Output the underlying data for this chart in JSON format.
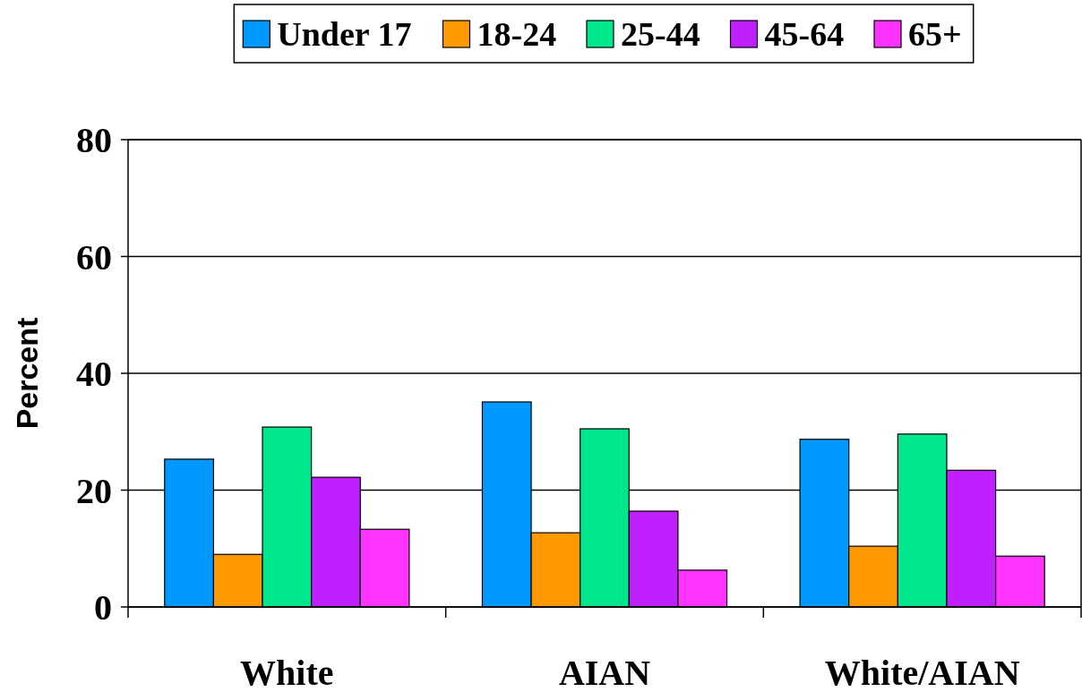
{
  "chart_data": {
    "type": "bar",
    "ylabel": "Percent",
    "categories": [
      "White",
      "AIAN",
      "White/AIAN"
    ],
    "series": [
      {
        "name": "Under 17",
        "color": "#0099ff",
        "values": [
          25.3,
          35.1,
          28.7
        ]
      },
      {
        "name": "18-24",
        "color": "#ff9900",
        "values": [
          9.0,
          12.7,
          10.4
        ]
      },
      {
        "name": "25-44",
        "color": "#00e68a",
        "values": [
          30.8,
          30.5,
          29.6
        ]
      },
      {
        "name": "45-64",
        "color": "#c020ff",
        "values": [
          22.2,
          16.4,
          23.4
        ]
      },
      {
        "name": "65+",
        "color": "#ff33ff",
        "values": [
          13.3,
          6.3,
          8.7
        ]
      }
    ],
    "ylim": [
      0,
      80
    ],
    "yticks": [
      0,
      20,
      40,
      60,
      80
    ],
    "grid": "y",
    "legend": "top"
  }
}
